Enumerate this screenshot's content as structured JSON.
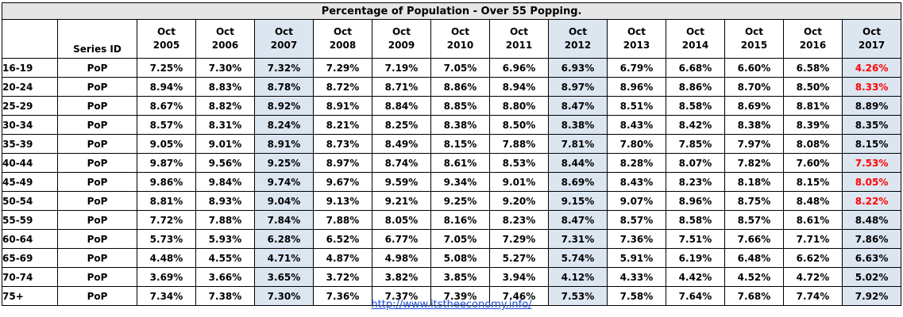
{
  "chart_data": {
    "type": "table",
    "title": "Percentage of Population - Over 55 Popping.",
    "header_series_id": "Series ID",
    "columns": [
      "Oct 2005",
      "Oct 2006",
      "Oct 2007",
      "Oct 2008",
      "Oct 2009",
      "Oct 2010",
      "Oct 2011",
      "Oct 2012",
      "Oct 2013",
      "Oct 2014",
      "Oct 2015",
      "Oct 2016",
      "Oct 2017"
    ],
    "highlight_columns": [
      2,
      7,
      12
    ],
    "highlight_color": "#dce6f1",
    "red_text_color": "#ff0000",
    "rows": [
      {
        "age": "16-19",
        "series": "PoP",
        "values": [
          "7.25%",
          "7.30%",
          "7.32%",
          "7.29%",
          "7.19%",
          "7.05%",
          "6.96%",
          "6.93%",
          "6.79%",
          "6.68%",
          "6.60%",
          "6.58%",
          "4.26%"
        ],
        "red_last": true
      },
      {
        "age": "20-24",
        "series": "PoP",
        "values": [
          "8.94%",
          "8.83%",
          "8.78%",
          "8.72%",
          "8.71%",
          "8.86%",
          "8.94%",
          "8.97%",
          "8.96%",
          "8.86%",
          "8.70%",
          "8.50%",
          "8.33%"
        ],
        "red_last": true
      },
      {
        "age": "25-29",
        "series": "PoP",
        "values": [
          "8.67%",
          "8.82%",
          "8.92%",
          "8.91%",
          "8.84%",
          "8.85%",
          "8.80%",
          "8.47%",
          "8.51%",
          "8.58%",
          "8.69%",
          "8.81%",
          "8.89%"
        ],
        "red_last": false
      },
      {
        "age": "30-34",
        "series": "PoP",
        "values": [
          "8.57%",
          "8.31%",
          "8.24%",
          "8.21%",
          "8.25%",
          "8.38%",
          "8.50%",
          "8.38%",
          "8.43%",
          "8.42%",
          "8.38%",
          "8.39%",
          "8.35%"
        ],
        "red_last": false
      },
      {
        "age": "35-39",
        "series": "PoP",
        "values": [
          "9.05%",
          "9.01%",
          "8.91%",
          "8.73%",
          "8.49%",
          "8.15%",
          "7.88%",
          "7.81%",
          "7.80%",
          "7.85%",
          "7.97%",
          "8.08%",
          "8.15%"
        ],
        "red_last": false
      },
      {
        "age": "40-44",
        "series": "PoP",
        "values": [
          "9.87%",
          "9.56%",
          "9.25%",
          "8.97%",
          "8.74%",
          "8.61%",
          "8.53%",
          "8.44%",
          "8.28%",
          "8.07%",
          "7.82%",
          "7.60%",
          "7.53%"
        ],
        "red_last": true
      },
      {
        "age": "45-49",
        "series": "PoP",
        "values": [
          "9.86%",
          "9.84%",
          "9.74%",
          "9.67%",
          "9.59%",
          "9.34%",
          "9.01%",
          "8.69%",
          "8.43%",
          "8.23%",
          "8.18%",
          "8.15%",
          "8.05%"
        ],
        "red_last": true
      },
      {
        "age": "50-54",
        "series": "PoP",
        "values": [
          "8.81%",
          "8.93%",
          "9.04%",
          "9.13%",
          "9.21%",
          "9.25%",
          "9.20%",
          "9.15%",
          "9.07%",
          "8.96%",
          "8.75%",
          "8.48%",
          "8.22%"
        ],
        "red_last": true
      },
      {
        "age": "55-59",
        "series": "PoP",
        "values": [
          "7.72%",
          "7.88%",
          "7.84%",
          "7.88%",
          "8.05%",
          "8.16%",
          "8.23%",
          "8.47%",
          "8.57%",
          "8.58%",
          "8.57%",
          "8.61%",
          "8.48%"
        ],
        "red_last": false
      },
      {
        "age": "60-64",
        "series": "PoP",
        "values": [
          "5.73%",
          "5.93%",
          "6.28%",
          "6.52%",
          "6.77%",
          "7.05%",
          "7.29%",
          "7.31%",
          "7.36%",
          "7.51%",
          "7.66%",
          "7.71%",
          "7.86%"
        ],
        "red_last": false
      },
      {
        "age": "65-69",
        "series": "PoP",
        "values": [
          "4.48%",
          "4.55%",
          "4.71%",
          "4.87%",
          "4.98%",
          "5.08%",
          "5.27%",
          "5.74%",
          "5.91%",
          "6.19%",
          "6.48%",
          "6.62%",
          "6.63%"
        ],
        "red_last": false
      },
      {
        "age": "70-74",
        "series": "PoP",
        "values": [
          "3.69%",
          "3.66%",
          "3.65%",
          "3.72%",
          "3.82%",
          "3.85%",
          "3.94%",
          "4.12%",
          "4.33%",
          "4.42%",
          "4.52%",
          "4.72%",
          "5.02%"
        ],
        "red_last": false
      },
      {
        "age": "75+",
        "series": "PoP",
        "values": [
          "7.34%",
          "7.38%",
          "7.30%",
          "7.36%",
          "7.37%",
          "7.39%",
          "7.46%",
          "7.53%",
          "7.58%",
          "7.64%",
          "7.68%",
          "7.74%",
          "7.92%"
        ],
        "red_last": false
      }
    ]
  },
  "footer": {
    "link_text": "http://www.itstheeconomy.info/"
  }
}
